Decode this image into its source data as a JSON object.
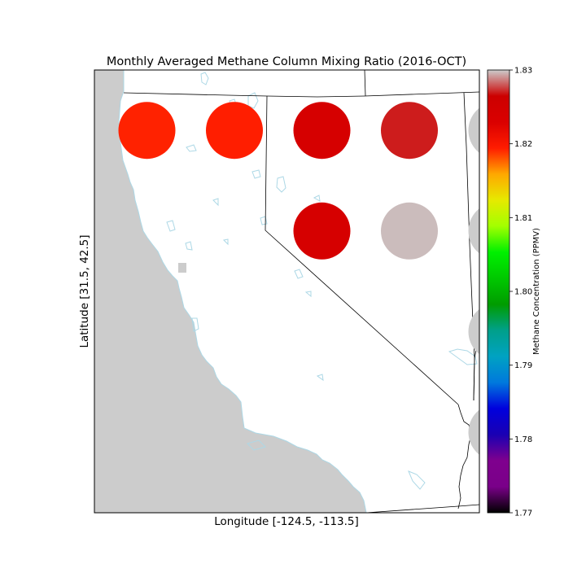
{
  "title": "Monthly Averaged Methane Column Mixing Ratio (2016-OCT)",
  "xlabel": "Longitude [-124.5, -113.5]",
  "ylabel": "Latitude [31.5, 42.5]",
  "colorbar": {
    "label": "Methane Concentration (PPMV)",
    "min": 1.77,
    "max": 1.83,
    "ticks": [
      "1.83",
      "1.82",
      "1.81",
      "1.80",
      "1.79",
      "1.78",
      "1.77"
    ],
    "colormap": "nipy_spectral",
    "colors": [
      "#000000",
      "#7a0089",
      "#7f008e",
      "#1a00b3",
      "#0000dd",
      "#0079dd",
      "#00a2c2",
      "#00a08a",
      "#009c00",
      "#00c800",
      "#00f000",
      "#a2ff00",
      "#e6ea00",
      "#ffa800",
      "#ff1c00",
      "#da0000",
      "#cc0000",
      "#cccccc"
    ]
  },
  "map": {
    "lon_range": [
      -124.5,
      -113.5
    ],
    "lat_range": [
      31.5,
      42.5
    ],
    "ocean_color": "#cccccc",
    "land_color": "#ffffff",
    "coastline_color": "#add8e6",
    "border_color": "#000000"
  },
  "chart_data": {
    "type": "scatter",
    "title": "Monthly Averaged Methane Column Mixing Ratio (2016-OCT)",
    "xlabel": "Longitude [-124.5, -113.5]",
    "ylabel": "Latitude [31.5, 42.5]",
    "xlim": [
      -124.5,
      -113.5
    ],
    "ylim": [
      31.5,
      42.5
    ],
    "points": [
      {
        "lon": -123.0,
        "lat": 41.0,
        "value": 1.8205,
        "color": "#ff2200"
      },
      {
        "lon": -120.5,
        "lat": 41.0,
        "value": 1.821,
        "color": "#ff1e00"
      },
      {
        "lon": -118.0,
        "lat": 41.0,
        "value": 1.825,
        "color": "#d60000"
      },
      {
        "lon": -115.5,
        "lat": 41.0,
        "value": 1.8265,
        "color": "#cd1c1c"
      },
      {
        "lon": -113.0,
        "lat": 41.0,
        "value": 1.83,
        "color": "#cccccc"
      },
      {
        "lon": -118.0,
        "lat": 38.5,
        "value": 1.825,
        "color": "#d60000"
      },
      {
        "lon": -115.5,
        "lat": 38.5,
        "value": 1.829,
        "color": "#cbbcbc"
      },
      {
        "lon": -113.0,
        "lat": 38.5,
        "value": 1.83,
        "color": "#cccccc"
      },
      {
        "lon": -113.0,
        "lat": 36.0,
        "value": 1.83,
        "color": "#cccccc"
      },
      {
        "lon": -113.0,
        "lat": 33.5,
        "value": 1.83,
        "color": "#cccccc"
      }
    ]
  }
}
